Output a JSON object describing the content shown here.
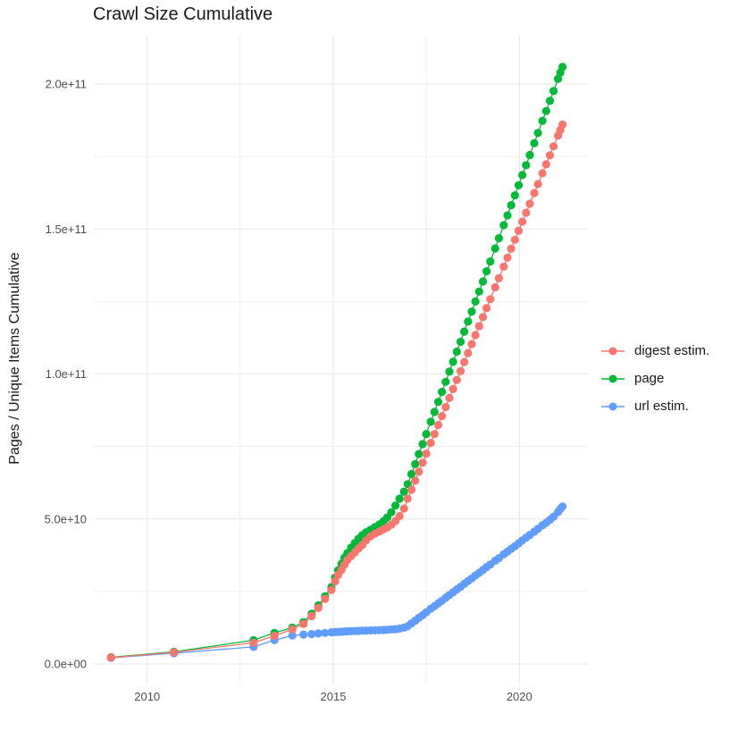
{
  "chart_data": {
    "type": "scatter",
    "title": "Crawl Size Cumulative",
    "xlabel": "",
    "ylabel": "Pages / Unique Items Cumulative",
    "values_unit": "1e9",
    "grid": true,
    "legend_position": "right",
    "xlim": [
      2008.55,
      2021.85
    ],
    "ylim_e9": [
      -10.3,
      216
    ],
    "x_ticks": [
      {
        "label": "2010",
        "year": 2010
      },
      {
        "label": "2015",
        "year": 2015
      },
      {
        "label": "2020",
        "year": 2020
      }
    ],
    "x_minor_years": [
      2012.5,
      2017.5
    ],
    "y_ticks": [
      {
        "label": "0.0e+00",
        "value_e9": 0
      },
      {
        "label": "5.0e+10",
        "value_e9": 50
      },
      {
        "label": "1.0e+11",
        "value_e9": 100
      },
      {
        "label": "1.5e+11",
        "value_e9": 150
      },
      {
        "label": "2.0e+11",
        "value_e9": 200
      }
    ],
    "y_minor_values_e9": [
      25,
      75,
      125,
      175
    ],
    "draw_order": [
      "url estim.",
      "page",
      "digest estim."
    ],
    "series": [
      {
        "name": "digest estim.",
        "color": "#F8766D",
        "points": [
          [
            2009.03,
            2.2
          ],
          [
            2010.72,
            4.0
          ],
          [
            2012.86,
            7.3
          ],
          [
            2013.42,
            9.7
          ],
          [
            2013.9,
            11.9
          ],
          [
            2014.2,
            13.8
          ],
          [
            2014.42,
            16.5
          ],
          [
            2014.6,
            19.3
          ],
          [
            2014.78,
            22.4
          ],
          [
            2014.95,
            25.5
          ],
          [
            2015.05,
            28.5
          ],
          [
            2015.13,
            30.7
          ],
          [
            2015.22,
            32.4
          ],
          [
            2015.3,
            34.2
          ],
          [
            2015.38,
            35.8
          ],
          [
            2015.48,
            37.2
          ],
          [
            2015.58,
            38.5
          ],
          [
            2015.68,
            39.8
          ],
          [
            2015.78,
            41.0
          ],
          [
            2015.88,
            42.6
          ],
          [
            2016.0,
            44.0
          ],
          [
            2016.12,
            44.9
          ],
          [
            2016.24,
            45.7
          ],
          [
            2016.35,
            46.4
          ],
          [
            2016.45,
            47.1
          ],
          [
            2016.56,
            48.0
          ],
          [
            2016.67,
            49.3
          ],
          [
            2016.78,
            51.0
          ],
          [
            2016.9,
            53.6
          ],
          [
            2017.0,
            57.0
          ],
          [
            2017.1,
            60.1
          ],
          [
            2017.2,
            63.2
          ],
          [
            2017.3,
            66.3
          ],
          [
            2017.4,
            69.4
          ],
          [
            2017.5,
            72.5
          ],
          [
            2017.62,
            76.2
          ],
          [
            2017.72,
            79.3
          ],
          [
            2017.82,
            82.4
          ],
          [
            2017.92,
            85.5
          ],
          [
            2018.02,
            88.6
          ],
          [
            2018.12,
            91.7
          ],
          [
            2018.22,
            94.8
          ],
          [
            2018.32,
            97.9
          ],
          [
            2018.42,
            101.0
          ],
          [
            2018.52,
            104.1
          ],
          [
            2018.62,
            107.2
          ],
          [
            2018.72,
            110.3
          ],
          [
            2018.82,
            113.4
          ],
          [
            2018.92,
            116.5
          ],
          [
            2019.02,
            119.6
          ],
          [
            2019.12,
            122.7
          ],
          [
            2019.22,
            125.8
          ],
          [
            2019.35,
            129.9
          ],
          [
            2019.45,
            133.0
          ],
          [
            2019.58,
            137.0
          ],
          [
            2019.68,
            140.1
          ],
          [
            2019.78,
            143.2
          ],
          [
            2019.88,
            146.3
          ],
          [
            2019.98,
            149.4
          ],
          [
            2020.08,
            152.5
          ],
          [
            2020.18,
            155.6
          ],
          [
            2020.28,
            158.7
          ],
          [
            2020.4,
            162.4
          ],
          [
            2020.5,
            165.5
          ],
          [
            2020.62,
            169.2
          ],
          [
            2020.72,
            172.3
          ],
          [
            2020.82,
            175.4
          ],
          [
            2020.92,
            178.5
          ],
          [
            2021.04,
            182.2
          ],
          [
            2021.1,
            184.1
          ],
          [
            2021.16,
            186.0
          ]
        ]
      },
      {
        "name": "page",
        "color": "#00BA38",
        "points": [
          [
            2009.03,
            2.3
          ],
          [
            2010.72,
            4.2
          ],
          [
            2012.86,
            8.2
          ],
          [
            2013.42,
            10.7
          ],
          [
            2013.9,
            12.5
          ],
          [
            2014.2,
            14.4
          ],
          [
            2014.42,
            17.3
          ],
          [
            2014.6,
            20.2
          ],
          [
            2014.78,
            23.3
          ],
          [
            2014.95,
            26.5
          ],
          [
            2015.05,
            29.8
          ],
          [
            2015.13,
            32.3
          ],
          [
            2015.22,
            34.5
          ],
          [
            2015.3,
            36.6
          ],
          [
            2015.38,
            38.2
          ],
          [
            2015.48,
            40.1
          ],
          [
            2015.58,
            41.7
          ],
          [
            2015.68,
            43.2
          ],
          [
            2015.78,
            44.4
          ],
          [
            2015.88,
            45.4
          ],
          [
            2016.0,
            46.3
          ],
          [
            2016.12,
            47.2
          ],
          [
            2016.24,
            48.1
          ],
          [
            2016.35,
            49.2
          ],
          [
            2016.45,
            50.5
          ],
          [
            2016.56,
            52.3
          ],
          [
            2016.67,
            54.6
          ],
          [
            2016.78,
            57.0
          ],
          [
            2016.9,
            59.4
          ],
          [
            2017.0,
            62.0
          ],
          [
            2017.1,
            65.5
          ],
          [
            2017.2,
            68.9
          ],
          [
            2017.3,
            72.4
          ],
          [
            2017.4,
            75.8
          ],
          [
            2017.5,
            79.3
          ],
          [
            2017.62,
            83.5
          ],
          [
            2017.72,
            86.9
          ],
          [
            2017.82,
            90.4
          ],
          [
            2017.92,
            93.8
          ],
          [
            2018.02,
            97.3
          ],
          [
            2018.12,
            100.8
          ],
          [
            2018.22,
            104.2
          ],
          [
            2018.32,
            107.7
          ],
          [
            2018.42,
            111.1
          ],
          [
            2018.52,
            114.6
          ],
          [
            2018.62,
            118.1
          ],
          [
            2018.72,
            121.5
          ],
          [
            2018.82,
            125.0
          ],
          [
            2018.92,
            128.4
          ],
          [
            2019.02,
            131.9
          ],
          [
            2019.12,
            135.4
          ],
          [
            2019.22,
            138.8
          ],
          [
            2019.35,
            143.3
          ],
          [
            2019.45,
            146.8
          ],
          [
            2019.58,
            151.3
          ],
          [
            2019.68,
            154.7
          ],
          [
            2019.78,
            158.2
          ],
          [
            2019.88,
            161.6
          ],
          [
            2019.98,
            165.1
          ],
          [
            2020.08,
            168.6
          ],
          [
            2020.18,
            172.0
          ],
          [
            2020.28,
            175.5
          ],
          [
            2020.4,
            179.6
          ],
          [
            2020.5,
            183.1
          ],
          [
            2020.62,
            187.3
          ],
          [
            2020.72,
            190.7
          ],
          [
            2020.82,
            194.2
          ],
          [
            2020.92,
            197.6
          ],
          [
            2021.04,
            201.8
          ],
          [
            2021.1,
            203.9
          ],
          [
            2021.16,
            205.9
          ]
        ]
      },
      {
        "name": "url estim.",
        "color": "#619CFF",
        "points": [
          [
            2009.03,
            2.1
          ],
          [
            2010.72,
            3.7
          ],
          [
            2012.86,
            5.9
          ],
          [
            2013.42,
            8.2
          ],
          [
            2013.9,
            9.8
          ],
          [
            2014.2,
            10.1
          ],
          [
            2014.42,
            10.3
          ],
          [
            2014.6,
            10.5
          ],
          [
            2014.78,
            10.7
          ],
          [
            2014.95,
            10.9
          ],
          [
            2015.05,
            11.0
          ],
          [
            2015.13,
            11.05
          ],
          [
            2015.22,
            11.1
          ],
          [
            2015.3,
            11.2
          ],
          [
            2015.38,
            11.25
          ],
          [
            2015.48,
            11.3
          ],
          [
            2015.58,
            11.35
          ],
          [
            2015.68,
            11.4
          ],
          [
            2015.78,
            11.45
          ],
          [
            2015.88,
            11.5
          ],
          [
            2016.0,
            11.55
          ],
          [
            2016.12,
            11.6
          ],
          [
            2016.24,
            11.65
          ],
          [
            2016.35,
            11.7
          ],
          [
            2016.45,
            11.8
          ],
          [
            2016.56,
            11.9
          ],
          [
            2016.67,
            12.0
          ],
          [
            2016.78,
            12.2
          ],
          [
            2016.9,
            12.5
          ],
          [
            2017.0,
            13.0
          ],
          [
            2017.1,
            14.0
          ],
          [
            2017.2,
            14.9
          ],
          [
            2017.3,
            15.9
          ],
          [
            2017.4,
            16.8
          ],
          [
            2017.5,
            17.8
          ],
          [
            2017.62,
            19.0
          ],
          [
            2017.72,
            19.9
          ],
          [
            2017.82,
            20.9
          ],
          [
            2017.92,
            21.8
          ],
          [
            2018.02,
            22.8
          ],
          [
            2018.12,
            23.8
          ],
          [
            2018.22,
            24.7
          ],
          [
            2018.32,
            25.7
          ],
          [
            2018.42,
            26.6
          ],
          [
            2018.52,
            27.6
          ],
          [
            2018.62,
            28.6
          ],
          [
            2018.72,
            29.5
          ],
          [
            2018.82,
            30.5
          ],
          [
            2018.92,
            31.4
          ],
          [
            2019.02,
            32.4
          ],
          [
            2019.12,
            33.4
          ],
          [
            2019.22,
            34.3
          ],
          [
            2019.35,
            35.6
          ],
          [
            2019.45,
            36.5
          ],
          [
            2019.58,
            37.8
          ],
          [
            2019.68,
            38.7
          ],
          [
            2019.78,
            39.7
          ],
          [
            2019.88,
            40.6
          ],
          [
            2019.98,
            41.6
          ],
          [
            2020.08,
            42.6
          ],
          [
            2020.18,
            43.5
          ],
          [
            2020.28,
            44.5
          ],
          [
            2020.4,
            45.6
          ],
          [
            2020.5,
            46.6
          ],
          [
            2020.62,
            47.8
          ],
          [
            2020.72,
            48.7
          ],
          [
            2020.82,
            49.7
          ],
          [
            2020.92,
            50.8
          ],
          [
            2021.04,
            52.4
          ],
          [
            2021.1,
            53.4
          ],
          [
            2021.16,
            54.3
          ]
        ]
      }
    ]
  },
  "colors": {
    "background": "#FFFFFF",
    "grid": "#EBEBEB",
    "tick_text": "#4D4D4D",
    "text": "#1A1A1A",
    "digest_estim": "#F8766D",
    "page": "#00BA38",
    "url_estim": "#619CFF"
  }
}
